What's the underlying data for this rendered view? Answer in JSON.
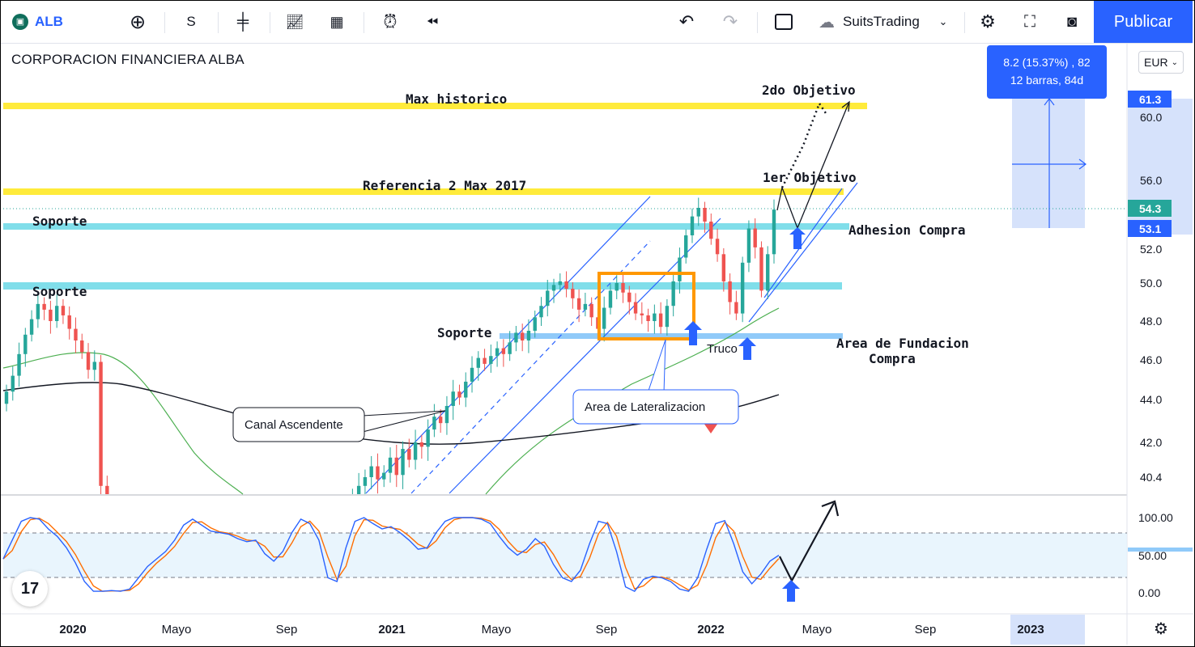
{
  "toolbar": {
    "symbol": "ALB",
    "interval": "S",
    "account": "SuitsTrading",
    "publish_label": "Publicar",
    "icons": [
      "logo-icon",
      "add-symbol-icon",
      "candles-icon",
      "indicators-icon",
      "layouts-icon",
      "alert-icon",
      "replay-icon",
      "undo-icon",
      "redo-icon",
      "rect-icon",
      "cloud-icon",
      "chevron-down-icon",
      "settings-icon",
      "fullscreen-icon",
      "camera-icon"
    ]
  },
  "stock_name": "CORPORACION FINANCIERA ALBA",
  "currency": "EUR",
  "measure": {
    "line1": "8.2 (15.37%) , 82",
    "line2": "12 barras, 84d"
  },
  "price_axis": {
    "ticks": [
      "60.0",
      "56.0",
      "52.0",
      "50.0",
      "48.0",
      "46.0",
      "44.0",
      "42.0",
      "40.4"
    ],
    "badges": [
      {
        "label": "61.3",
        "color": "#2962ff"
      },
      {
        "label": "54.3",
        "color": "#26a69a"
      },
      {
        "label": "53.1",
        "color": "#2962ff"
      }
    ]
  },
  "osc_axis": {
    "ticks": [
      "100.00",
      "50.00",
      "0.00"
    ]
  },
  "time_axis": {
    "ticks": [
      "2020",
      "Mayo",
      "Sep",
      "2021",
      "Mayo",
      "Sep",
      "2022",
      "Mayo",
      "Sep",
      "2023"
    ]
  },
  "annotations": {
    "max_historico": "Max historico",
    "ref_2017": "Referencia 2 Max 2017",
    "soporte": "Soporte",
    "soporte2": "Soporte",
    "soporte3": "Soporte",
    "objetivo1": "1er Objetivo",
    "objetivo2": "2do Objetivo",
    "adhesion": "Adhesion Compra",
    "fundacion_1": "Area de Fundacion",
    "fundacion_2": "Compra",
    "truco": "Truco",
    "canal": "Canal Ascendente",
    "lateralizacion": "Area de Lateralizacion"
  },
  "colors": {
    "up": "#26a69a",
    "down": "#ef5350",
    "yellow": "#ffeb3b",
    "cyan": "#80deea",
    "support_blue": "#90caf9",
    "channel": "#2962ff",
    "ma_green": "#4caf50",
    "ma_black": "#131722",
    "orange": "#ff9800",
    "stoch_k": "#2962ff",
    "stoch_d": "#ff6d00"
  },
  "chart_data": {
    "type": "candlestick",
    "title": "CORPORACION FINANCIERA ALBA",
    "ylim": [
      39.5,
      62.5
    ],
    "osc_ylim": [
      -15,
      115
    ],
    "osc_levels": [
      80,
      20
    ],
    "horizontal_levels": [
      {
        "name": "Max historico",
        "value": 61.0,
        "color": "#ffeb3b"
      },
      {
        "name": "Referencia 2 Max 2017",
        "value": 55.5,
        "color": "#ffeb3b"
      },
      {
        "name": "Soporte",
        "value": 53.1,
        "color": "#80deea"
      },
      {
        "name": "Soporte",
        "value": 49.9,
        "color": "#80deea"
      },
      {
        "name": "Soporte",
        "value": 47.3,
        "color": "#90caf9"
      }
    ],
    "weekly_closes": [
      44.4,
      45.2,
      46.3,
      47.3,
      48.1,
      48.9,
      48.6,
      48.0,
      48.8,
      48.3,
      47.6,
      47.0,
      46.4,
      45.5,
      45.9,
      40.0,
      36.5,
      33.5,
      32.0,
      31.4,
      31.0,
      31.3,
      31.8,
      32.2,
      32.0,
      31.6,
      31.4,
      31.9,
      32.3,
      32.6,
      32.4,
      32.1,
      31.7,
      31.4,
      31.1,
      30.8,
      30.5,
      30.3,
      30.4,
      30.7,
      31.0,
      31.4,
      31.7,
      31.9,
      32.2,
      32.5,
      32.8,
      33.2,
      33.9,
      34.6,
      35.4,
      36.2,
      37.0,
      37.8,
      38.6,
      39.4,
      40.0,
      40.4,
      40.9,
      40.3,
      40.6,
      41.3,
      40.5,
      41.7,
      41.2,
      42.0,
      41.8,
      42.6,
      43.2,
      42.9,
      43.7,
      44.4,
      44.1,
      44.9,
      45.6,
      46.1,
      45.8,
      46.2,
      46.6,
      46.3,
      46.9,
      47.4,
      47.0,
      47.5,
      48.2,
      48.8,
      49.6,
      49.9,
      50.1,
      49.7,
      49.2,
      48.6,
      48.9,
      48.2,
      47.6,
      48.7,
      49.6,
      50.0,
      49.5,
      49.0,
      48.4,
      48.3,
      48.0,
      48.4,
      47.7,
      48.8,
      50.1,
      51.5,
      52.8,
      53.9,
      54.4,
      53.6,
      52.6,
      51.7,
      50.1,
      49.0,
      48.4,
      51.2,
      53.2,
      52.1,
      49.6,
      51.7,
      54.3
    ],
    "moving_averages": [
      {
        "name": "",
        "color": "#4caf50"
      },
      {
        "name": "",
        "color": "#131722"
      }
    ],
    "measure_box": {
      "from": 53.1,
      "to": 61.3,
      "change": "8.2 (15.37%)",
      "bars": 12,
      "days": 84
    }
  }
}
